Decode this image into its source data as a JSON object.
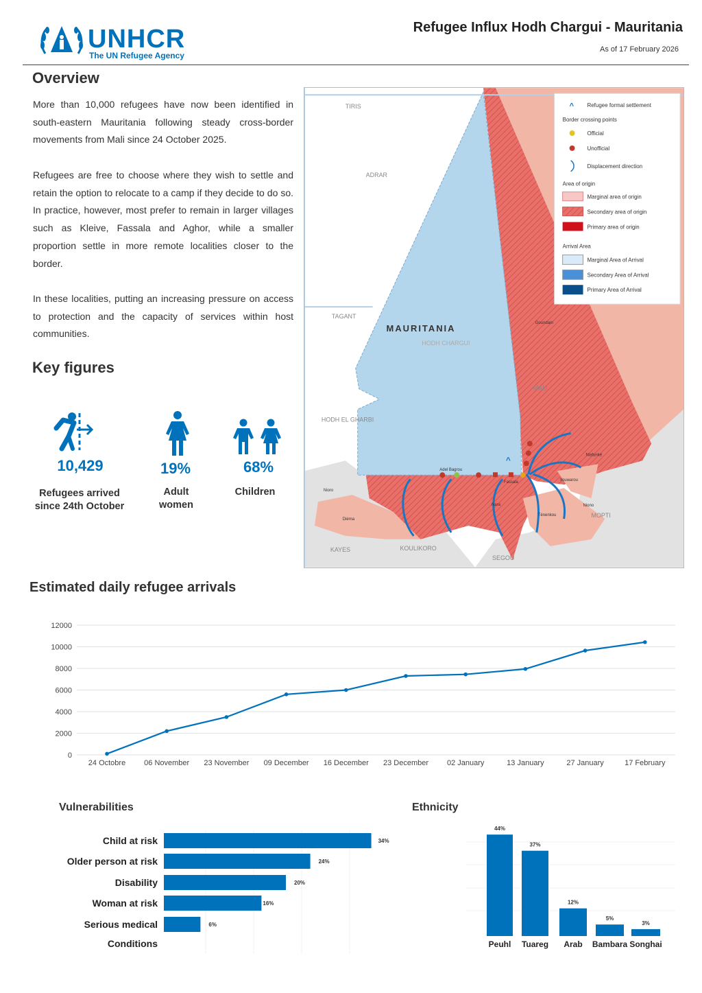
{
  "header": {
    "logo_name": "UNHCR",
    "logo_tagline": "The UN Refugee Agency",
    "title": "Refugee Influx Hodh Chargui - Mauritania",
    "date": "As of 17 February 2026"
  },
  "overview": {
    "heading": "Overview",
    "paragraphs": [
      "More than 10,000 refugees have now been identified in south-eastern Mauritania following steady cross-border movements from Mali since 24 October 2025.",
      "Refugees are free to choose where they wish to settle and retain the option to relocate to a camp if they decide to do so. In practice, however, most prefer to remain in larger villages such as Kleive, Fassala and Aghor, while a smaller proportion settle in more remote localities closer to the border.",
      "In these localities, putting an increasing pressure on access to protection and the capacity of services within host communities."
    ]
  },
  "key_figures": {
    "heading": "Key figures",
    "items": [
      {
        "icon": "refugee-crossing-icon",
        "value": "10,429",
        "label": "Refugees arrived since 24th October"
      },
      {
        "icon": "woman-icon",
        "value": "19%",
        "label": "Adult women"
      },
      {
        "icon": "children-icon",
        "value": "68%",
        "label": "Children"
      }
    ]
  },
  "map": {
    "country_label": "MAURITANIA",
    "region_label": "HODH CHARGUI",
    "labels": [
      "ADRAR",
      "TAGANT",
      "HODH EL GHARBI",
      "MALI",
      "KAYES",
      "KOULIKORO",
      "SEGOU",
      "MOPTI",
      "TIRIS",
      "Adel Bagrou",
      "Goundam",
      "Niafunké",
      "Youwarou",
      "Ténenkou",
      "Nara",
      "Niono",
      "Diéma",
      "Nioro",
      "Fassala"
    ],
    "legend": {
      "settlement": "Refugee formal settlement",
      "crossing_title": "Border crossing points",
      "official": "Official",
      "unofficial": "Unofficial",
      "direction": "Displacement direction",
      "origin_title": "Area of origin",
      "marginal_origin": "Marginal area of origin",
      "secondary_origin": "Secondary area of origin",
      "primary_origin": "Primary area of origin",
      "arrival_title": "Arrival Area",
      "marginal_arrival": "Marginal Area of Arrival",
      "secondary_arrival": "Secondary Area of Arrival",
      "primary_arrival": "Primary Area of Arrival"
    },
    "colors": {
      "arrival_marginal": "#b4d6ec",
      "origin_secondary": "#e8706a",
      "origin_marginal": "#f2b6a6"
    }
  },
  "chart_data": [
    {
      "type": "line",
      "title": "Estimated daily refugee arrivals",
      "categories": [
        "24 Octobre",
        "06 November",
        "23 November",
        "09 December",
        "16 December",
        "23 December",
        "02 January",
        "13 January",
        "27 January",
        "17 February"
      ],
      "values": [
        100,
        2200,
        3500,
        5600,
        6000,
        7300,
        7450,
        7950,
        9650,
        10429
      ],
      "yticks": [
        "0",
        "2000",
        "4000",
        "6000",
        "8000",
        "10000",
        "12000"
      ],
      "ylim": [
        0,
        12000
      ],
      "grid": true,
      "color": "#0072bc"
    },
    {
      "type": "bar",
      "orientation": "horizontal",
      "title": "Vulnerabilities",
      "categories": [
        "Child at risk",
        "Older person at risk",
        "Disability",
        "Woman at risk",
        "Serious medical Conditions"
      ],
      "values": [
        34,
        24,
        20,
        16,
        6
      ],
      "labels": [
        "34%",
        "24%",
        "20%",
        "16%",
        "6%"
      ],
      "color": "#0072bc"
    },
    {
      "type": "bar",
      "title": "Ethnicity",
      "categories": [
        "Peuhl",
        "Tuareg",
        "Arab",
        "Bambara",
        "Songhai"
      ],
      "values": [
        44,
        37,
        12,
        5,
        3
      ],
      "labels": [
        "44%",
        "37%",
        "12%",
        "5%",
        "3%"
      ],
      "color": "#0072bc"
    }
  ]
}
